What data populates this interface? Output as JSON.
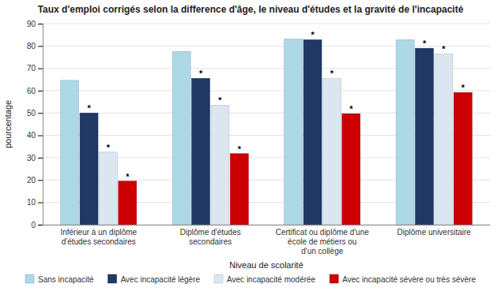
{
  "chart_data": {
    "type": "bar",
    "title": "Taux d'emploi corrigés selon la difference d'âge, le niveau d'études et la gravité de l'incapacité",
    "xlabel": "Niveau de scolarité",
    "ylabel": "pourcentage",
    "categories": [
      "Inférieur à un diplôme d'études secondaires",
      "Diplôme d'études secondaires",
      "Certificat ou diplôme d'une école de métiers ou\nd'un collège",
      "Diplôme universitaire"
    ],
    "series": [
      {
        "name": "Sans incapacité",
        "color": "#add8e6",
        "values": [
          64.6,
          77.6,
          83.1,
          82.8
        ]
      },
      {
        "name": "Avec incapacité légère",
        "color": "#1f3864",
        "values": [
          50.0,
          65.5,
          82.8,
          79.0
        ],
        "value_labels": [
          "*",
          "*",
          "*",
          "*"
        ]
      },
      {
        "name": "Avec incapacité modérée",
        "color": "#dce6f1",
        "values": [
          32.5,
          53.5,
          65.5,
          76.5
        ],
        "value_labels": [
          "*",
          "*",
          "*",
          "*"
        ]
      },
      {
        "name": "Avec incapacité sévère ou très sévère",
        "color": "#cc0000",
        "values": [
          19.5,
          31.8,
          49.7,
          59.2
        ],
        "value_labels": [
          "*",
          "*",
          "*",
          "*"
        ]
      }
    ],
    "ylim": [
      0,
      90
    ],
    "yticks": [
      0,
      10,
      20,
      30,
      40,
      50,
      60,
      70,
      80,
      90
    ],
    "grid": true,
    "legend": "bottom"
  }
}
